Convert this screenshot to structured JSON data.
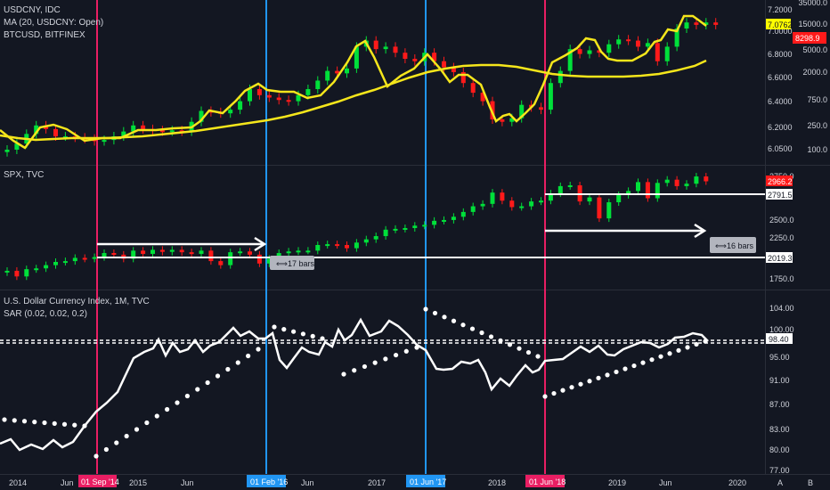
{
  "colors": {
    "background": "#131722",
    "up": "#00e03a",
    "down": "#ff1a1a",
    "ma_line": "#f5e61b",
    "btc_line": "#f5e61b",
    "dxy_line": "#ffffff",
    "vline_red": "#e91e63",
    "vline_blue": "#2196f3"
  },
  "panes": {
    "top": {
      "legend": [
        "USDCNY, IDC",
        "MA (20, USDCNY: Open)",
        "BTCUSD, BITFINEX"
      ],
      "price_axis": [
        "7.2000",
        "7.0000",
        "6.8000",
        "6.6000",
        "6.4000",
        "6.2000",
        "6.0500"
      ],
      "btc_axis": [
        "35000.0",
        "15000.0",
        "5000.0",
        "2000.0",
        "750.0",
        "250.0",
        "100.0"
      ],
      "tag_usdcny": "7.0762",
      "tag_btc": "8298.9"
    },
    "middle": {
      "legend": [
        "SPX, TVC"
      ],
      "price_axis": [
        "2750.0",
        "2500.0",
        "2250.0",
        "1750.0"
      ],
      "tag_current": "2966.2",
      "tag_level_high": "2791.5",
      "tag_level_low": "2019.3",
      "bars_label_1": "17 bars",
      "bars_label_2": "16 bars"
    },
    "bottom": {
      "legend": [
        "U.S. Dollar Currency Index, 1M, TVC",
        "SAR (0.02, 0.02, 0.2)"
      ],
      "price_axis": [
        "104.00",
        "100.00",
        "95.00",
        "91.00",
        "87.00",
        "83.00",
        "80.00",
        "77.00"
      ],
      "tag_current": "98.40"
    }
  },
  "time_axis": [
    "2014",
    "Jun",
    "2015",
    "Jun",
    "Jun",
    "2017",
    "2018",
    "2019",
    "Jun",
    "2020"
  ],
  "date_markers": [
    "01 Sep '14",
    "01 Feb '16",
    "01 Jun '17",
    "01 Jun '18"
  ],
  "footer_icons": [
    "%",
    "log",
    "auto"
  ],
  "footer_labels": [
    "A",
    "B"
  ],
  "series": {
    "usdcny_closes": [
      6.05,
      6.1,
      6.18,
      6.25,
      6.22,
      6.16,
      6.16,
      6.15,
      6.14,
      6.12,
      6.13,
      6.16,
      6.2,
      6.25,
      6.22,
      6.21,
      6.2,
      6.21,
      6.2,
      6.28,
      6.37,
      6.36,
      6.35,
      6.38,
      6.45,
      6.55,
      6.5,
      6.48,
      6.46,
      6.45,
      6.5,
      6.55,
      6.62,
      6.7,
      6.68,
      6.72,
      6.9,
      6.95,
      6.88,
      6.9,
      6.85,
      6.8,
      6.78,
      6.85,
      6.78,
      6.73,
      6.69,
      6.6,
      6.52,
      6.45,
      6.3,
      6.28,
      6.31,
      6.42,
      6.4,
      6.38,
      6.6,
      6.7,
      6.88,
      6.84,
      6.87,
      6.85,
      6.92,
      6.96,
      6.95,
      6.9,
      6.93,
      6.78,
      6.9,
      7.05,
      7.1,
      7.08,
      7.1,
      7.08
    ],
    "spx_closes": [
      1850,
      1780,
      1870,
      1880,
      1920,
      1960,
      1970,
      2010,
      2000,
      2020,
      2070,
      2050,
      2000,
      2100,
      2060,
      2110,
      2085,
      2110,
      2080,
      2060,
      2100,
      1970,
      1920,
      2080,
      2090,
      2050,
      1940,
      2000,
      2070,
      2090,
      2100,
      2100,
      2170,
      2180,
      2170,
      2130,
      2200,
      2240,
      2280,
      2360,
      2370,
      2380,
      2410,
      2420,
      2470,
      2480,
      2520,
      2580,
      2650,
      2680,
      2820,
      2720,
      2640,
      2650,
      2710,
      2720,
      2810,
      2900,
      2910,
      2710,
      2760,
      2500,
      2700,
      2790,
      2840,
      2950,
      2750,
      2940,
      2980,
      2900,
      2930,
      3020,
      2960
    ],
    "dxy_closes": [
      80.5,
      80.7,
      79.9,
      80.3,
      80.1,
      79.8,
      80.4,
      79.7,
      81.0,
      83.0,
      85.8,
      88.4,
      89.7,
      91.1,
      94.8,
      97.5,
      95.6,
      95.0,
      97.2,
      96.5,
      94.9,
      96.6,
      97.1,
      98.0,
      99.5,
      97.5,
      96.2,
      94.6,
      93.5,
      95.8,
      96.1,
      95.8,
      95.4,
      96.9,
      99.6,
      101.9,
      99.5,
      100.4,
      99.2,
      98.8,
      97.2,
      96.9,
      96.9,
      93.5,
      92.9,
      93.2,
      92.5,
      94.5,
      92.0,
      89.0,
      90.0,
      90.5,
      89.8,
      91.8,
      94.1,
      94.6,
      94.6,
      95.1,
      94.4,
      96.2,
      97.0,
      96.4,
      97.1,
      95.6,
      96.1,
      96.5,
      97.6,
      97.1,
      96.5,
      98.3,
      98.5,
      99.2,
      98.4
    ]
  }
}
